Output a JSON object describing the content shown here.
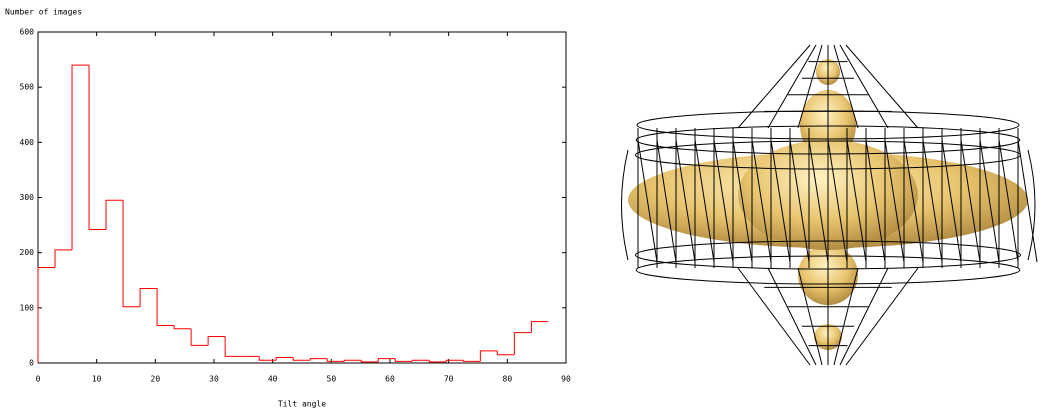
{
  "chart_data": {
    "type": "histogram",
    "x_label": "Tilt angle",
    "y_label": "Number of images",
    "bins": [
      0,
      2.9,
      5.8,
      8.7,
      11.6,
      14.5,
      17.4,
      20.3,
      23.2,
      26.1,
      29,
      31.9,
      34.8,
      37.7,
      40.6,
      43.5,
      46.4,
      49.3,
      52.2,
      55.1,
      58,
      60.9,
      63.8,
      66.7,
      69.6,
      72.5,
      75.4,
      78.3,
      81.2,
      84.1,
      87
    ],
    "values": [
      173,
      205,
      540,
      242,
      295,
      102,
      135,
      68,
      62,
      32,
      48,
      12,
      12,
      5,
      10,
      5,
      8,
      3,
      5,
      2,
      8,
      3,
      5,
      2,
      5,
      3,
      22,
      15,
      55,
      75
    ],
    "color": "#ff0000",
    "xlim": [
      0,
      90
    ],
    "xticks": [
      0,
      10,
      20,
      30,
      40,
      50,
      60,
      70,
      80,
      90
    ],
    "ylim": [
      0,
      600
    ],
    "yticks": [
      0,
      100,
      200,
      300,
      400,
      500,
      600
    ]
  }
}
